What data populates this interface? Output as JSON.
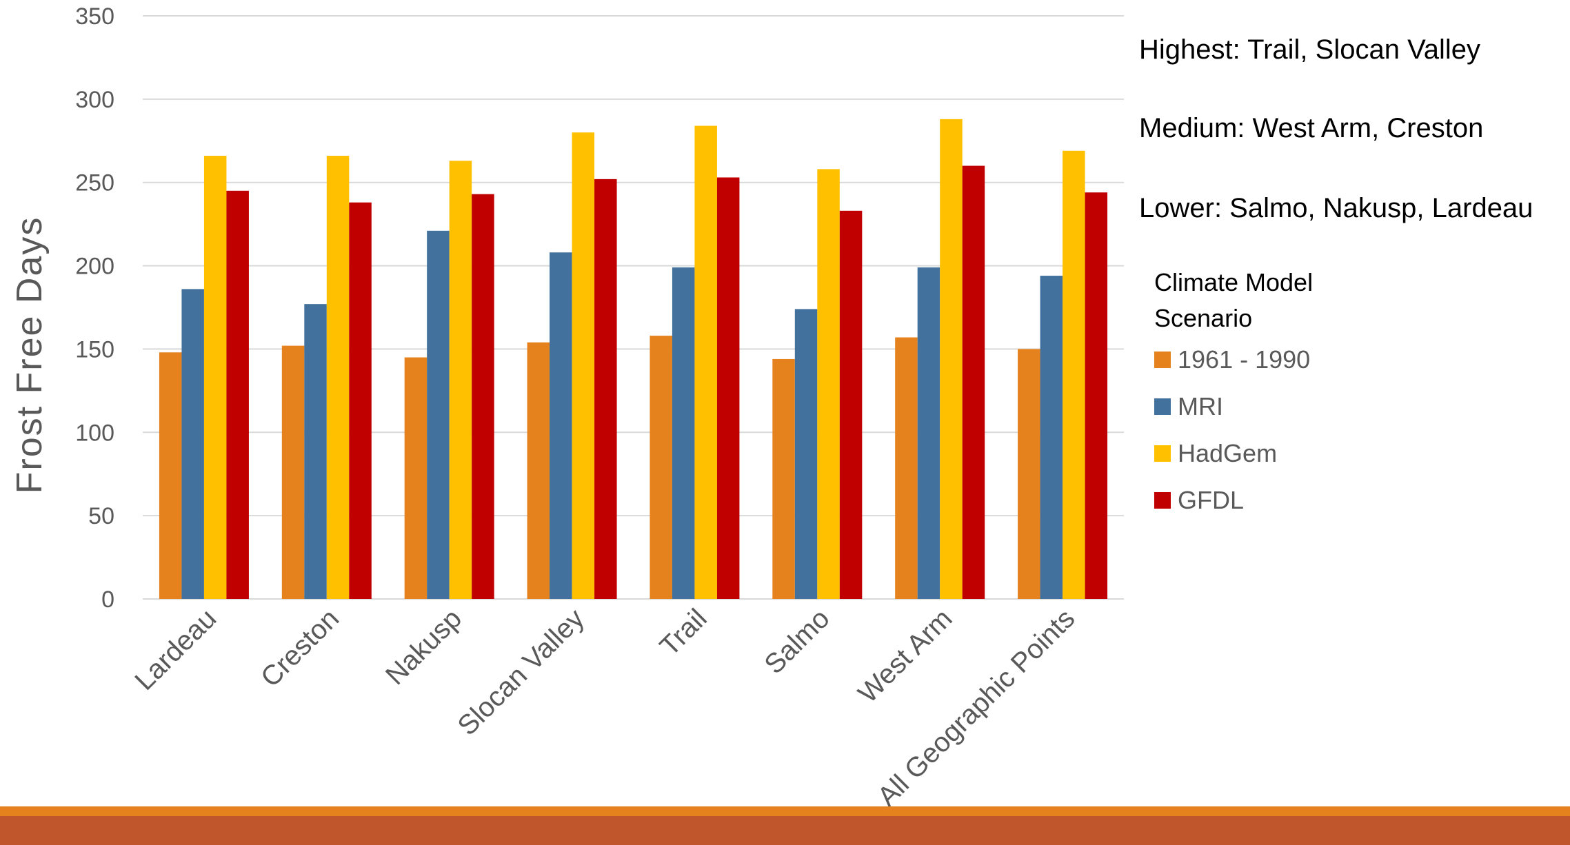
{
  "chart_data": {
    "type": "bar",
    "ylabel": "Frost Free  Days",
    "ylim": [
      0,
      350
    ],
    "yticks": [
      0,
      50,
      100,
      150,
      200,
      250,
      300,
      350
    ],
    "grid": true,
    "categories": [
      "Lardeau",
      "Creston",
      "Nakusp",
      "Slocan Valley",
      "Trail",
      "Salmo",
      "West Arm",
      "All Geographic Points"
    ],
    "series": [
      {
        "name": "1961 - 1990",
        "color": "#E6821E",
        "values": [
          148,
          152,
          145,
          154,
          158,
          144,
          157,
          150
        ]
      },
      {
        "name": "MRI",
        "color": "#41719C",
        "values": [
          186,
          177,
          221,
          208,
          199,
          174,
          199,
          194
        ]
      },
      {
        "name": "HadGem",
        "color": "#FFC000",
        "values": [
          266,
          266,
          263,
          280,
          284,
          258,
          288,
          269
        ]
      },
      {
        "name": "GFDL",
        "color": "#C00000",
        "values": [
          245,
          238,
          243,
          252,
          253,
          233,
          260,
          244
        ]
      }
    ],
    "legend": {
      "title": "Climate Model Scenario",
      "position": "right"
    }
  },
  "notes": {
    "highest": "Highest: Trail, Slocan Valley",
    "medium": "Medium: West Arm, Creston",
    "lower": "Lower: Salmo, Nakusp, Lardeau"
  },
  "colors": {
    "gridline": "#D9D9D9",
    "footer_band_top": "#E6821E",
    "footer_band_main": "#C0562B"
  }
}
